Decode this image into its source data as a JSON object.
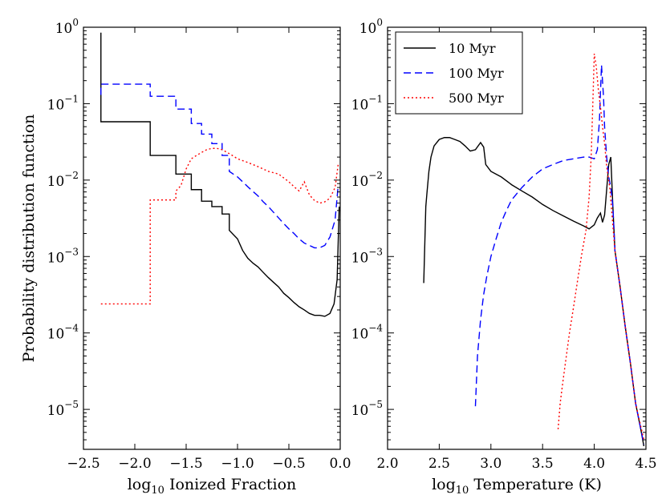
{
  "chart_data": [
    {
      "type": "line",
      "panel": "left",
      "xlabel_main": "log",
      "xlabel_sub": "10",
      "xlabel_rest": " Ionized Fraction",
      "ylabel": "Probability distribution function",
      "xlim": [
        -2.5,
        0.0
      ],
      "ylim": [
        3e-06,
        1.0
      ],
      "yscale": "log",
      "xticks": [
        -2.5,
        -2.0,
        -1.5,
        -1.0,
        -0.5,
        0.0
      ],
      "xtick_labels": [
        "−2.5",
        "−2.0",
        "−1.5",
        "−1.0",
        "−0.5",
        "0.0"
      ],
      "yticks": [
        1e-05,
        0.0001,
        0.001,
        0.01,
        0.1,
        1
      ],
      "ytick_labels": [
        {
          "base": "10",
          "exp": "-5"
        },
        {
          "base": "10",
          "exp": "-4"
        },
        {
          "base": "10",
          "exp": "-3"
        },
        {
          "base": "10",
          "exp": "-2"
        },
        {
          "base": "10",
          "exp": "-1"
        },
        {
          "base": "10",
          "exp": "0"
        }
      ],
      "series": [
        {
          "name": "10 Myr",
          "color": "#000000",
          "dash": "solid",
          "x": [
            -2.33,
            -2.33,
            -1.85,
            -1.85,
            -1.6,
            -1.6,
            -1.45,
            -1.45,
            -1.35,
            -1.35,
            -1.25,
            -1.25,
            -1.15,
            -1.15,
            -1.08,
            -1.08,
            -1.0,
            -0.95,
            -0.9,
            -0.85,
            -0.8,
            -0.75,
            -0.7,
            -0.65,
            -0.6,
            -0.55,
            -0.5,
            -0.45,
            -0.4,
            -0.35,
            -0.3,
            -0.25,
            -0.2,
            -0.15,
            -0.1,
            -0.06,
            -0.03,
            -0.01
          ],
          "y": [
            0.85,
            0.058,
            0.058,
            0.021,
            0.021,
            0.012,
            0.012,
            0.0075,
            0.0075,
            0.0053,
            0.0053,
            0.0045,
            0.0045,
            0.0036,
            0.0036,
            0.0022,
            0.0017,
            0.0012,
            0.00095,
            0.00082,
            0.00073,
            0.00062,
            0.00053,
            0.00046,
            0.0004,
            0.00033,
            0.00029,
            0.00025,
            0.00022,
            0.0002,
            0.00018,
            0.00017,
            0.00017,
            0.000165,
            0.00018,
            0.00024,
            0.0005,
            0.0045
          ]
        },
        {
          "name": "100 Myr",
          "color": "#0000ff",
          "dash": "dashed",
          "x": [
            -2.33,
            -2.33,
            -1.85,
            -1.85,
            -1.6,
            -1.6,
            -1.45,
            -1.45,
            -1.35,
            -1.35,
            -1.25,
            -1.25,
            -1.15,
            -1.15,
            -1.08,
            -1.08,
            -1.0,
            -0.95,
            -0.9,
            -0.85,
            -0.8,
            -0.75,
            -0.7,
            -0.65,
            -0.6,
            -0.55,
            -0.5,
            -0.45,
            -0.4,
            -0.35,
            -0.3,
            -0.25,
            -0.2,
            -0.15,
            -0.1,
            -0.05,
            -0.02
          ],
          "y": [
            0.13,
            0.18,
            0.18,
            0.125,
            0.125,
            0.085,
            0.085,
            0.055,
            0.055,
            0.04,
            0.04,
            0.03,
            0.03,
            0.021,
            0.021,
            0.013,
            0.011,
            0.0095,
            0.0082,
            0.0071,
            0.0062,
            0.0052,
            0.0045,
            0.0038,
            0.0032,
            0.0027,
            0.0023,
            0.002,
            0.0017,
            0.0015,
            0.0014,
            0.0013,
            0.0013,
            0.0014,
            0.0018,
            0.003,
            0.0085
          ]
        },
        {
          "name": "500 Myr",
          "color": "#ff0000",
          "dash": "dotted",
          "x": [
            -2.33,
            -1.85,
            -1.85,
            -1.6,
            -1.6,
            -1.55,
            -1.5,
            -1.45,
            -1.4,
            -1.35,
            -1.3,
            -1.25,
            -1.2,
            -1.15,
            -1.1,
            -1.05,
            -1.0,
            -0.9,
            -0.8,
            -0.7,
            -0.6,
            -0.5,
            -0.45,
            -0.4,
            -0.35,
            -0.3,
            -0.25,
            -0.2,
            -0.15,
            -0.1,
            -0.05,
            -0.02
          ],
          "y": [
            0.00024,
            0.00024,
            0.0055,
            0.0055,
            0.0072,
            0.0085,
            0.014,
            0.019,
            0.021,
            0.023,
            0.025,
            0.026,
            0.026,
            0.025,
            0.023,
            0.021,
            0.019,
            0.017,
            0.015,
            0.013,
            0.012,
            0.0095,
            0.0082,
            0.0072,
            0.0095,
            0.0064,
            0.0054,
            0.005,
            0.0052,
            0.0058,
            0.008,
            0.016
          ]
        }
      ]
    },
    {
      "type": "line",
      "panel": "right",
      "xlabel_main": "log",
      "xlabel_sub": "10",
      "xlabel_rest": " Temperature (K)",
      "ylabel": "",
      "xlim": [
        2.0,
        4.5
      ],
      "ylim": [
        3e-06,
        1.0
      ],
      "yscale": "log",
      "xticks": [
        2.0,
        2.5,
        3.0,
        3.5,
        4.0,
        4.5
      ],
      "xtick_labels": [
        "2.0",
        "2.5",
        "3.0",
        "3.5",
        "4.0",
        "4.5"
      ],
      "yticks": [
        1e-05,
        0.0001,
        0.001,
        0.01,
        0.1,
        1
      ],
      "ytick_labels": [
        {
          "base": "10",
          "exp": "-5"
        },
        {
          "base": "10",
          "exp": "-4"
        },
        {
          "base": "10",
          "exp": "-3"
        },
        {
          "base": "10",
          "exp": "-2"
        },
        {
          "base": "10",
          "exp": "-1"
        },
        {
          "base": "10",
          "exp": "0"
        }
      ],
      "legend": {
        "placement": "top-left",
        "entries": [
          "10 Myr",
          "100 Myr",
          "500 Myr"
        ]
      },
      "series": [
        {
          "name": "10 Myr",
          "color": "#000000",
          "dash": "solid",
          "x": [
            2.35,
            2.37,
            2.38,
            2.4,
            2.42,
            2.45,
            2.5,
            2.55,
            2.6,
            2.65,
            2.7,
            2.75,
            2.8,
            2.85,
            2.9,
            2.93,
            2.95,
            3.0,
            3.1,
            3.2,
            3.3,
            3.4,
            3.5,
            3.6,
            3.7,
            3.8,
            3.9,
            3.95,
            4.0,
            4.03,
            4.06,
            4.08,
            4.1,
            4.12,
            4.14,
            4.16,
            4.18,
            4.2,
            4.25,
            4.3,
            4.35,
            4.4,
            4.45,
            4.48
          ],
          "y": [
            0.00045,
            0.0045,
            0.0065,
            0.013,
            0.02,
            0.028,
            0.034,
            0.036,
            0.036,
            0.034,
            0.032,
            0.028,
            0.024,
            0.025,
            0.031,
            0.027,
            0.016,
            0.013,
            0.011,
            0.0087,
            0.0072,
            0.006,
            0.0048,
            0.004,
            0.0034,
            0.0029,
            0.0025,
            0.0023,
            0.0026,
            0.0032,
            0.0037,
            0.0028,
            0.0035,
            0.0075,
            0.016,
            0.02,
            0.0045,
            0.0012,
            0.0004,
            0.00012,
            4e-05,
            1.2e-05,
            5.5e-06,
            3.3e-06
          ]
        },
        {
          "name": "100 Myr",
          "color": "#0000ff",
          "dash": "dashed",
          "x": [
            2.85,
            2.87,
            2.9,
            2.93,
            2.96,
            3.0,
            3.05,
            3.1,
            3.15,
            3.2,
            3.3,
            3.4,
            3.5,
            3.6,
            3.7,
            3.8,
            3.9,
            3.95,
            4.0,
            4.03,
            4.05,
            4.07,
            4.09,
            4.1,
            4.12,
            4.14,
            4.16,
            4.18,
            4.2,
            4.25,
            4.3,
            4.35,
            4.4,
            4.45,
            4.48
          ],
          "y": [
            1.1e-05,
            5e-05,
            0.00015,
            0.00032,
            0.00055,
            0.001,
            0.0017,
            0.0028,
            0.004,
            0.0055,
            0.008,
            0.011,
            0.014,
            0.016,
            0.018,
            0.019,
            0.02,
            0.02,
            0.019,
            0.025,
            0.06,
            0.32,
            0.12,
            0.05,
            0.02,
            0.011,
            0.008,
            0.0045,
            0.0012,
            0.0004,
            0.00012,
            4e-05,
            1.2e-05,
            5.5e-06,
            3.5e-06
          ]
        },
        {
          "name": "500 Myr",
          "color": "#ff0000",
          "dash": "dotted",
          "x": [
            3.65,
            3.67,
            3.7,
            3.73,
            3.76,
            3.8,
            3.84,
            3.88,
            3.92,
            3.95,
            3.97,
            3.99,
            4.0,
            4.02,
            4.04,
            4.06,
            4.08,
            4.1,
            4.12,
            4.15,
            4.2,
            4.25,
            4.3,
            4.35,
            4.4,
            4.45,
            4.48
          ],
          "y": [
            5.5e-06,
            1.2e-05,
            2.5e-05,
            5e-05,
            0.0001,
            0.00022,
            0.0005,
            0.0011,
            0.0022,
            0.006,
            0.02,
            0.15,
            0.45,
            0.3,
            0.15,
            0.09,
            0.05,
            0.03,
            0.015,
            0.008,
            0.0012,
            0.0004,
            0.00012,
            4e-05,
            1.2e-05,
            6e-06,
            4e-06
          ]
        }
      ]
    }
  ]
}
